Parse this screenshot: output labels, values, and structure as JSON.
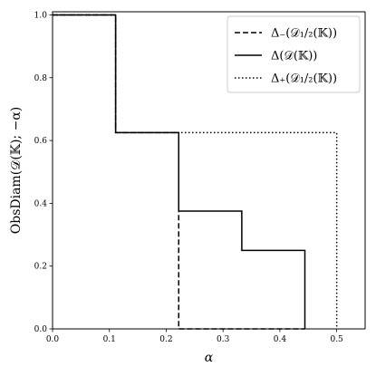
{
  "chart_data": {
    "type": "line",
    "title": "",
    "xlabel": "α",
    "ylabel": "ObsDiam(𝒟(𝕂); −α)",
    "xlim": [
      0.0,
      0.55
    ],
    "ylim": [
      0.0,
      1.01
    ],
    "xticks": [
      "0.0",
      "0.1",
      "0.2",
      "0.3",
      "0.4",
      "0.5"
    ],
    "yticks": [
      "0.0",
      "0.2",
      "0.4",
      "0.6",
      "0.8",
      "1.0"
    ],
    "grid": false,
    "legend_position": "top-right",
    "series": [
      {
        "name": "Δ₋(𝒟₁/₂(𝕂))",
        "style": "dashed",
        "x": [
          0.0,
          0.111,
          0.111,
          0.222,
          0.222,
          0.444
        ],
        "y": [
          1.0,
          1.0,
          0.625,
          0.625,
          0.0,
          0.0
        ]
      },
      {
        "name": "Δ(𝒟(𝕂))",
        "style": "solid",
        "x": [
          0.0,
          0.111,
          0.111,
          0.222,
          0.222,
          0.333,
          0.333,
          0.444,
          0.444
        ],
        "y": [
          1.0,
          1.0,
          0.625,
          0.625,
          0.375,
          0.375,
          0.25,
          0.25,
          0.0
        ]
      },
      {
        "name": "Δ₊(𝒟₁/₂(𝕂))",
        "style": "dotted",
        "x": [
          0.0,
          0.111,
          0.111,
          0.5,
          0.5
        ],
        "y": [
          1.0,
          1.0,
          0.625,
          0.625,
          0.0
        ]
      }
    ]
  }
}
